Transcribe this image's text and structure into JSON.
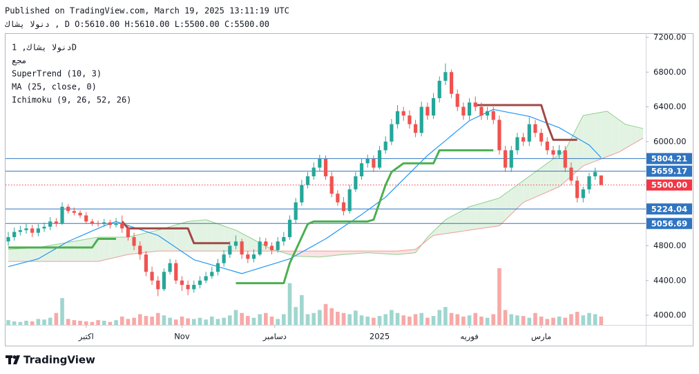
{
  "header": {
    "published": "Published on TradingView.com, March 19, 2025 13:11:19 UTC",
    "symbol_interval": "دنولا يشاك , D",
    "open": "O:5610.00",
    "high": "H:5610.00",
    "low": "L:5500.00",
    "close": "C:5500.00"
  },
  "legend": {
    "symbol_line": "دنولا يشاك, 1D",
    "volume": "مجع",
    "supertrend": "SuperTrend (10, 3)",
    "ma": "MA (25, close, 0)",
    "ichimoku": "Ichimoku (9, 26, 52, 26)"
  },
  "footer": {
    "brand": "TradingView"
  },
  "chart_data": {
    "type": "candlestick",
    "open": [
      4850,
      4900,
      4960,
      4980,
      5000,
      4950,
      5000,
      5020,
      5080,
      5060,
      5250,
      5200,
      5180,
      5150,
      5080,
      5060,
      5050,
      5070,
      5040,
      5060,
      5000,
      4900,
      4800,
      4700,
      4500,
      4400,
      4300,
      4500,
      4600,
      4400,
      4350,
      4300,
      4350,
      4400,
      4450,
      4500,
      4600,
      4700,
      4800,
      4850,
      4700,
      4650,
      4700,
      4850,
      4800,
      4750,
      4850,
      4900,
      5100,
      5300,
      5500,
      5600,
      5700,
      5800,
      5600,
      5400,
      5300,
      5200,
      5450,
      5600,
      5750,
      5800,
      5700,
      5900,
      6000,
      6200,
      6350,
      6300,
      6200,
      6100,
      6400,
      6300,
      6500,
      6700,
      6800,
      6550,
      6400,
      6300,
      6450,
      6400,
      6300,
      6350,
      6250,
      5900,
      5700,
      5900,
      6050,
      6000,
      6200,
      6100,
      6000,
      5900,
      5850,
      5900,
      5700,
      5550,
      5350,
      5450,
      5600,
      5610
    ],
    "high": [
      4960,
      5010,
      5030,
      5060,
      5040,
      5050,
      5070,
      5130,
      5120,
      5300,
      5280,
      5240,
      5210,
      5190,
      5110,
      5090,
      5110,
      5100,
      5120,
      5150,
      5040,
      4950,
      4850,
      4740,
      4560,
      4450,
      4540,
      4650,
      4640,
      4450,
      4400,
      4400,
      4450,
      4500,
      4560,
      4650,
      4750,
      4850,
      4920,
      4880,
      4740,
      4760,
      4900,
      4890,
      4840,
      4900,
      4960,
      5150,
      5350,
      5560,
      5650,
      5760,
      5850,
      5840,
      5650,
      5440,
      5360,
      5500,
      5650,
      5800,
      5850,
      5840,
      5950,
      6060,
      6260,
      6420,
      6400,
      6360,
      6250,
      6460,
      6450,
      6560,
      6750,
      6900,
      6830,
      6600,
      6450,
      6500,
      6520,
      6450,
      6400,
      6400,
      6300,
      5950,
      5950,
      6100,
      6100,
      6280,
      6250,
      6150,
      6050,
      5950,
      5960,
      5950,
      5760,
      5600,
      5480,
      5640,
      5700,
      5610
    ],
    "low": [
      4800,
      4860,
      4920,
      4940,
      4900,
      4910,
      4960,
      4980,
      5020,
      5040,
      5170,
      5150,
      5120,
      5050,
      5030,
      5020,
      5020,
      5000,
      5010,
      4950,
      4860,
      4750,
      4640,
      4450,
      4350,
      4220,
      4280,
      4470,
      4360,
      4280,
      4230,
      4260,
      4310,
      4370,
      4420,
      4460,
      4560,
      4660,
      4760,
      4650,
      4600,
      4610,
      4680,
      4760,
      4700,
      4720,
      4800,
      4870,
      5060,
      5260,
      5460,
      5560,
      5660,
      5560,
      5360,
      5260,
      5150,
      5170,
      5420,
      5560,
      5700,
      5650,
      5680,
      5860,
      5960,
      6150,
      6240,
      6150,
      6050,
      6060,
      6250,
      6260,
      6450,
      6650,
      6500,
      6350,
      6250,
      6250,
      6350,
      6250,
      6250,
      6200,
      5850,
      5650,
      5650,
      5850,
      5950,
      5950,
      6050,
      5950,
      5850,
      5800,
      5800,
      5650,
      5500,
      5300,
      5300,
      5400,
      5560,
      5500
    ],
    "close": [
      4900,
      4960,
      4980,
      5000,
      4950,
      5000,
      5020,
      5080,
      5060,
      5250,
      5200,
      5180,
      5150,
      5080,
      5060,
      5050,
      5070,
      5040,
      5060,
      5000,
      4900,
      4800,
      4700,
      4500,
      4400,
      4300,
      4500,
      4600,
      4400,
      4350,
      4300,
      4350,
      4400,
      4450,
      4500,
      4600,
      4700,
      4800,
      4850,
      4700,
      4650,
      4700,
      4850,
      4800,
      4750,
      4850,
      4900,
      5100,
      5300,
      5500,
      5600,
      5700,
      5800,
      5600,
      5400,
      5300,
      5200,
      5450,
      5600,
      5750,
      5800,
      5700,
      5900,
      6000,
      6200,
      6350,
      6300,
      6200,
      6100,
      6400,
      6300,
      6500,
      6700,
      6800,
      6550,
      6400,
      6300,
      6450,
      6400,
      6300,
      6350,
      6250,
      5900,
      5700,
      5900,
      6050,
      6000,
      6200,
      6100,
      6000,
      5900,
      5850,
      5900,
      5700,
      5550,
      5350,
      5450,
      5600,
      5650,
      5500
    ],
    "volume": [
      8,
      6,
      5,
      7,
      6,
      10,
      9,
      12,
      20,
      45,
      10,
      8,
      7,
      6,
      5,
      8,
      7,
      5,
      8,
      14,
      10,
      12,
      18,
      15,
      14,
      20,
      16,
      12,
      9,
      14,
      11,
      10,
      12,
      9,
      14,
      10,
      12,
      16,
      25,
      20,
      15,
      12,
      18,
      20,
      14,
      10,
      18,
      70,
      30,
      50,
      18,
      20,
      25,
      35,
      28,
      22,
      20,
      18,
      24,
      16,
      14,
      12,
      15,
      18,
      25,
      20,
      16,
      14,
      18,
      20,
      12,
      15,
      25,
      30,
      20,
      18,
      14,
      16,
      20,
      14,
      12,
      18,
      95,
      25,
      18,
      16,
      15,
      12,
      20,
      14,
      10,
      12,
      14,
      12,
      18,
      22,
      16,
      20,
      18,
      14
    ],
    "up_color": "#26a69a",
    "down_color": "#ef5350",
    "volume_up_color": "#9fd6cf",
    "volume_down_color": "#f7a9a7",
    "ma": {
      "color": "#2196f3",
      "values": [
        4560,
        4578,
        4596,
        4614,
        4632,
        4650,
        4690,
        4730,
        4770,
        4810,
        4850,
        4880,
        4910,
        4940,
        4970,
        5000,
        5030,
        5055,
        5080,
        5057,
        5034,
        5011,
        4988,
        4965,
        4942,
        4920,
        4873,
        4827,
        4780,
        4733,
        4687,
        4640,
        4620,
        4600,
        4580,
        4560,
        4540,
        4520,
        4500,
        4480,
        4501,
        4522,
        4544,
        4565,
        4586,
        4607,
        4629,
        4650,
        4688,
        4727,
        4765,
        4803,
        4842,
        4880,
        4927,
        4973,
        5020,
        5067,
        5113,
        5160,
        5210,
        5260,
        5310,
        5360,
        5429,
        5497,
        5566,
        5634,
        5703,
        5771,
        5840,
        5897,
        5954,
        6011,
        6069,
        6126,
        6183,
        6240,
        6273,
        6305,
        6338,
        6370,
        6357,
        6343,
        6330,
        6317,
        6303,
        6290,
        6264,
        6238,
        6212,
        6186,
        6160,
        6120,
        6080,
        6040,
        6000,
        5960,
        5888,
        5815
      ]
    },
    "supertrend": {
      "up_color": "#4caf50",
      "down_color": "#a04946",
      "up": [
        4780,
        4780,
        4780,
        4780,
        4780,
        4780,
        4780,
        4780,
        4780,
        4780,
        4780,
        4780,
        4780,
        4780,
        4780,
        4880,
        4880,
        4880,
        4880,
        null,
        null,
        null,
        null,
        null,
        null,
        null,
        null,
        null,
        null,
        null,
        null,
        null,
        null,
        null,
        null,
        null,
        null,
        null,
        4370,
        4370,
        4370,
        4370,
        4370,
        4370,
        4370,
        4370,
        4370,
        4600,
        4750,
        4900,
        5050,
        5080,
        5080,
        5080,
        5080,
        5080,
        5080,
        5080,
        5080,
        5080,
        5080,
        5100,
        5300,
        5500,
        5650,
        5700,
        5750,
        5750,
        5750,
        5750,
        5750,
        5750,
        5900,
        5900,
        5900,
        5900,
        5900,
        5900,
        5900,
        5900,
        5900,
        5900,
        null,
        null,
        null,
        null,
        null,
        null,
        null,
        null,
        null,
        null,
        null,
        null,
        null,
        null,
        null,
        null,
        null,
        null
      ],
      "down": [
        null,
        null,
        null,
        null,
        null,
        null,
        null,
        null,
        null,
        null,
        null,
        null,
        null,
        null,
        null,
        null,
        null,
        null,
        null,
        5080,
        5000,
        5000,
        5000,
        5000,
        5000,
        5000,
        5000,
        5000,
        5000,
        5000,
        5000,
        4830,
        4830,
        4830,
        4830,
        4830,
        4830,
        4830,
        null,
        null,
        null,
        null,
        null,
        null,
        null,
        null,
        null,
        null,
        null,
        null,
        null,
        null,
        null,
        null,
        null,
        null,
        null,
        null,
        null,
        null,
        null,
        null,
        null,
        null,
        null,
        null,
        null,
        null,
        null,
        null,
        null,
        null,
        null,
        null,
        null,
        null,
        null,
        null,
        6420,
        6420,
        6420,
        6420,
        6420,
        6420,
        6420,
        6420,
        6420,
        6420,
        6420,
        6420,
        6200,
        6020,
        6020,
        6020,
        6020,
        6020
      ]
    },
    "ichimoku": {
      "span_a_color": "#8fcf8f",
      "span_b_color": "#ef9a9a",
      "bull_fill": "#e3f3e3",
      "bear_fill": "#fbe2e2",
      "span_a": [
        4760,
        4764,
        4768,
        4772,
        4776,
        4780,
        4792,
        4804,
        4816,
        4828,
        4840,
        4852,
        4864,
        4876,
        4888,
        4900,
        4900,
        4900,
        4900,
        4900,
        4900,
        4916,
        4932,
        4948,
        4964,
        4980,
        5000,
        5020,
        5040,
        5060,
        5080,
        5087,
        5093,
        5100,
        5076,
        5052,
        5028,
        5004,
        4980,
        4943,
        4907,
        4870,
        4833,
        4797,
        4760,
        4740,
        4720,
        4700,
        4680,
        4678,
        4675,
        4673,
        4670,
        4678,
        4685,
        4693,
        4700,
        4705,
        4710,
        4715,
        4720,
        4716,
        4712,
        4708,
        4704,
        4700,
        4707,
        4713,
        4720,
        4810,
        4900,
        4967,
        5033,
        5100,
        5138,
        5175,
        5213,
        5250,
        5270,
        5290,
        5310,
        5330,
        5350,
        5400,
        5450,
        5500,
        5550,
        5600,
        5650,
        5700,
        5750,
        5800,
        5850,
        5900,
        6033,
        6167,
        6300,
        6313,
        6325,
        6338,
        6350,
        6300,
        6250,
        6200,
        6183,
        6167,
        6150
      ],
      "span_b": [
        4620,
        4620,
        4620,
        4620,
        4620,
        4620,
        4620,
        4620,
        4620,
        4620,
        4620,
        4620,
        4620,
        4620,
        4620,
        4620,
        4636,
        4652,
        4668,
        4684,
        4700,
        4708,
        4716,
        4724,
        4732,
        4740,
        4740,
        4740,
        4740,
        4740,
        4740,
        4740,
        4740,
        4740,
        4740,
        4740,
        4740,
        4740,
        4740,
        4740,
        4740,
        4740,
        4740,
        4740,
        4740,
        4740,
        4740,
        4740,
        4740,
        4740,
        4740,
        4740,
        4740,
        4740,
        4740,
        4740,
        4740,
        4740,
        4740,
        4740,
        4740,
        4740,
        4740,
        4740,
        4740,
        4740,
        4747,
        4753,
        4760,
        4813,
        4867,
        4920,
        4930,
        4940,
        4950,
        4960,
        4970,
        4980,
        4990,
        5000,
        5010,
        5020,
        5030,
        5098,
        5165,
        5233,
        5300,
        5330,
        5360,
        5390,
        5420,
        5450,
        5480,
        5540,
        5600,
        5660,
        5720,
        5747,
        5773,
        5800,
        5827,
        5853,
        5880,
        5920,
        5960,
        6000,
        6040
      ]
    },
    "levels": [
      {
        "value": 5804.21,
        "label": "5804.21",
        "color": "#2f74c0",
        "style": "solid"
      },
      {
        "value": 5659.17,
        "label": "5659.17",
        "color": "#2f74c0",
        "style": "solid"
      },
      {
        "value": 5500,
        "label": "5500.00",
        "color": "#f23645",
        "style": "dotted"
      },
      {
        "value": 5224.04,
        "label": "5224.04",
        "color": "#2f74c0",
        "style": "solid"
      },
      {
        "value": 5056.69,
        "label": "5056.69",
        "color": "#2f74c0",
        "style": "solid"
      }
    ],
    "ylim": [
      3889,
      7248
    ],
    "yticks": [
      {
        "value": 4000,
        "label": "4000.00"
      },
      {
        "value": 4400,
        "label": "4400.00"
      },
      {
        "value": 4800,
        "label": "4800.00"
      },
      {
        "value": 6000,
        "label": "6000.00"
      },
      {
        "value": 6400,
        "label": "6400.00"
      },
      {
        "value": 6800,
        "label": "6800.00"
      },
      {
        "value": 7200,
        "label": "7200.00"
      }
    ],
    "xticks": [
      {
        "value": 13,
        "label": "اكتبر"
      },
      {
        "value": 29,
        "label": "Nov"
      },
      {
        "value": 44.5,
        "label": "دسامبر"
      },
      {
        "value": 62,
        "label": "2025"
      },
      {
        "value": 77,
        "label": "فوريه"
      },
      {
        "value": 89,
        "label": "مارس"
      }
    ]
  }
}
